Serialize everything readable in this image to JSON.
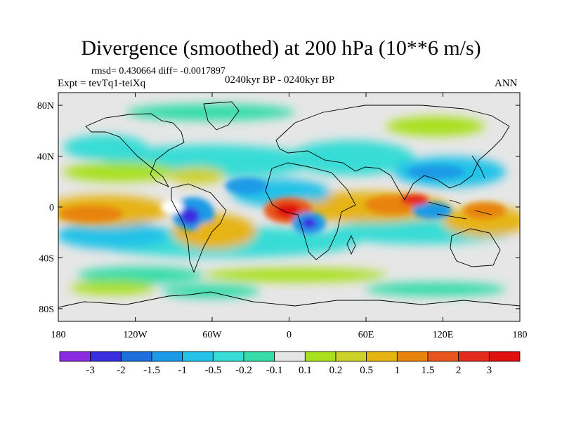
{
  "header": {
    "title": "Divergence (smoothed) at 200 hPa (10**6 m/s)",
    "stats": "rmsd= 0.430664 diff= -0.0017897",
    "experiment": "Expt = tevTq1-teiXq",
    "period": "0240kyr BP - 0240kyr BP",
    "season": "ANN"
  },
  "axes": {
    "lat_ticks": [
      "80N",
      "40N",
      "0",
      "40S",
      "80S"
    ],
    "lat_values": [
      80,
      40,
      0,
      -40,
      -80
    ],
    "lon_ticks": [
      "180",
      "120W",
      "60W",
      "0",
      "60E",
      "120E",
      "180"
    ],
    "lon_values": [
      -180,
      -120,
      -60,
      0,
      60,
      120,
      180
    ]
  },
  "colorbar": {
    "labels": [
      "-3",
      "-2",
      "-1.5",
      "-1",
      "-0.5",
      "-0.2",
      "-0.1",
      "0.1",
      "0.2",
      "0.5",
      "1",
      "1.5",
      "2",
      "3"
    ],
    "colors": [
      "#8a2be2",
      "#3a2ee0",
      "#1c6fdc",
      "#1a9ae6",
      "#24c2e8",
      "#38dcd6",
      "#36dca8",
      "#e6e6e6",
      "#a8e01e",
      "#ccd22a",
      "#e6b412",
      "#e8840e",
      "#e8561e",
      "#e42c1e",
      "#e01010"
    ]
  },
  "chart_data": {
    "type": "heatmap",
    "title": "Divergence (smoothed) at 200 hPa (10**6 m/s)",
    "projection": "cylindrical-equidistant",
    "units": "10**6 m/s",
    "lon_range": [
      -180,
      180
    ],
    "lat_range": [
      -90,
      90
    ],
    "background_value": 0,
    "features": [
      {
        "name": "equatorial-atlantic-convergence",
        "lon": -10,
        "lat": -3,
        "value": -1.5
      },
      {
        "name": "central-africa-divergence-max",
        "lon": 0,
        "lat": -2,
        "value": 3
      },
      {
        "name": "south-america-convergence",
        "lon": -75,
        "lat": -5,
        "value": -2
      },
      {
        "name": "amazon-divergence",
        "lon": -55,
        "lat": -10,
        "value": 1
      },
      {
        "name": "congo-convergence",
        "lon": 15,
        "lat": -12,
        "value": -2
      },
      {
        "name": "indian-ocean-divergence",
        "lon": 75,
        "lat": 2,
        "value": 1.5
      },
      {
        "name": "maritime-continent-convergence",
        "lon": 115,
        "lat": -2,
        "value": -1.5
      },
      {
        "name": "west-pacific-divergence",
        "lon": 150,
        "lat": -8,
        "value": 1
      },
      {
        "name": "east-pacific-divergence",
        "lon": -135,
        "lat": -5,
        "value": 1
      },
      {
        "name": "north-atlantic-subtropical-convergence",
        "lon": -80,
        "lat": 28,
        "value": -0.5
      },
      {
        "name": "caribbean-divergence",
        "lon": -75,
        "lat": 18,
        "value": 0.5
      },
      {
        "name": "north-africa-convergence",
        "lon": 20,
        "lat": 35,
        "value": -0.5
      },
      {
        "name": "southern-ocean-convergence",
        "lon": -130,
        "lat": -35,
        "value": -0.5
      }
    ]
  }
}
